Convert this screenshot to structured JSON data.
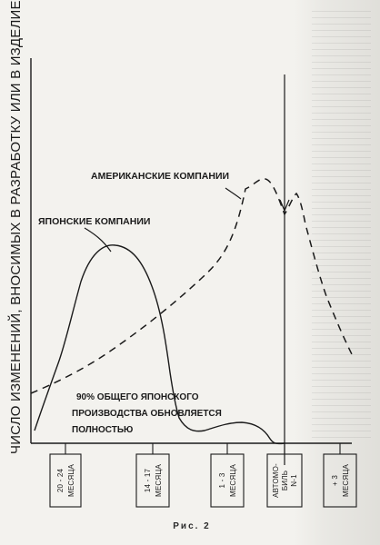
{
  "diagram": {
    "y_axis_label": "ЧИСЛО ИЗМЕНЕНИЙ, ВНОСИМЫХ В РАЗРАБОТКУ  ИЛИ В ИЗДЕЛИЕ",
    "american_label": "АМЕРИКАНСКИЕ КОМПАНИИ",
    "japanese_label": "ЯПОНСКИЕ КОМПАНИИ",
    "note_lines": [
      "90% ОБЩЕГО ЯПОНСКОГО",
      "ПРОИЗВОДСТВА ОБНОВЛЯЕТСЯ",
      "ПОЛНОСТЬЮ"
    ],
    "timeline": [
      {
        "top": "20 - 24",
        "bottom": "МЕСЯЦА"
      },
      {
        "top": "14 - 17",
        "bottom": "МЕСЯЦА"
      },
      {
        "top": "1 - 3",
        "bottom": "МЕСЯЦА"
      },
      {
        "top": "АВТОМО-",
        "mid": "БИЛЬ",
        "bottom": "N-1"
      },
      {
        "top": "+ 3",
        "bottom": "МЕСЯЦА"
      }
    ],
    "caption": "Рис. 2",
    "colors": {
      "ink": "#1b1b1b",
      "paper": "#f3f2ee"
    }
  }
}
